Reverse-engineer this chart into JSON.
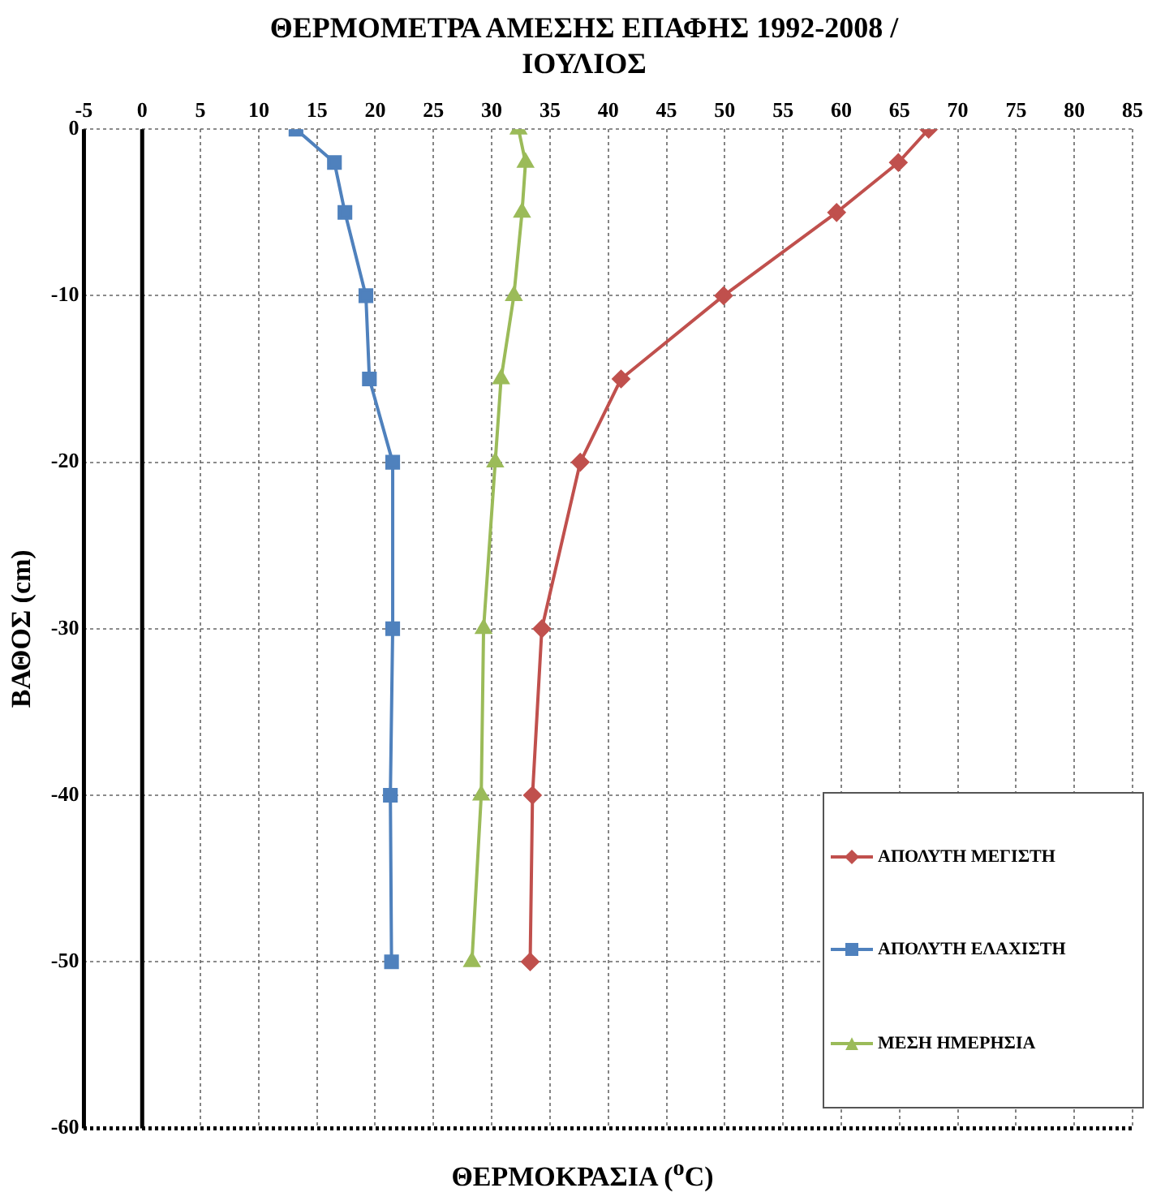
{
  "chart_data": {
    "type": "line",
    "title": "ΘΕΡΜΟΜΕΤΡΑ ΑΜΕΣΗΣ ΕΠΑΦΗΣ  1992-2008 / ΙΟΥΛΙΟΣ",
    "xlabel": "ΘΕΡΜΟΚΡΑΣΙΑ ($^{o}$C)",
    "ylabel": "ΒΑΘΟΣ (cm)",
    "xlim": [
      -5,
      85
    ],
    "xticks": [
      -5,
      0,
      5,
      10,
      15,
      20,
      25,
      30,
      35,
      40,
      45,
      50,
      55,
      60,
      65,
      70,
      75,
      80,
      85
    ],
    "ylim": [
      -60,
      0
    ],
    "yticks": [
      -60,
      -50,
      -40,
      -30,
      -20,
      -10,
      0
    ],
    "grid": true,
    "ref_lines": [
      {
        "axis": "x",
        "value": 0,
        "color": "#000000"
      }
    ],
    "legend": "bottom right",
    "line_style": "solid",
    "series": [
      {
        "name": "ΑΠΟΛΥΤΗ ΜΕΓΙΣΤΗ",
        "color": "#c0504d",
        "marker": "diamond",
        "x": [
          67.5,
          64.9,
          59.6,
          49.9,
          41.1,
          37.6,
          34.3,
          33.5,
          33.3
        ],
        "values": [
          0,
          -2,
          -5,
          -10,
          -15,
          -20,
          -30,
          -40,
          -50
        ]
      },
      {
        "name": "ΑΠΟΛΥΤΗ ΕΛΑΧΙΣΤΗ",
        "color": "#4f81bd",
        "marker": "square",
        "x": [
          13.2,
          16.5,
          17.4,
          19.2,
          19.5,
          21.5,
          21.5,
          21.3,
          21.4
        ],
        "values": [
          0,
          -2,
          -5,
          -10,
          -15,
          -20,
          -30,
          -40,
          -50
        ]
      },
      {
        "name": "ΜΕΣΗ ΗΜΕΡΗΣΙΑ",
        "color": "#9bbb59",
        "marker": "triangle",
        "x": [
          32.3,
          32.9,
          32.6,
          31.9,
          30.8,
          30.3,
          29.3,
          29.1,
          28.3
        ],
        "values": [
          0,
          -2,
          -5,
          -10,
          -15,
          -20,
          -30,
          -40,
          -50
        ]
      }
    ]
  }
}
